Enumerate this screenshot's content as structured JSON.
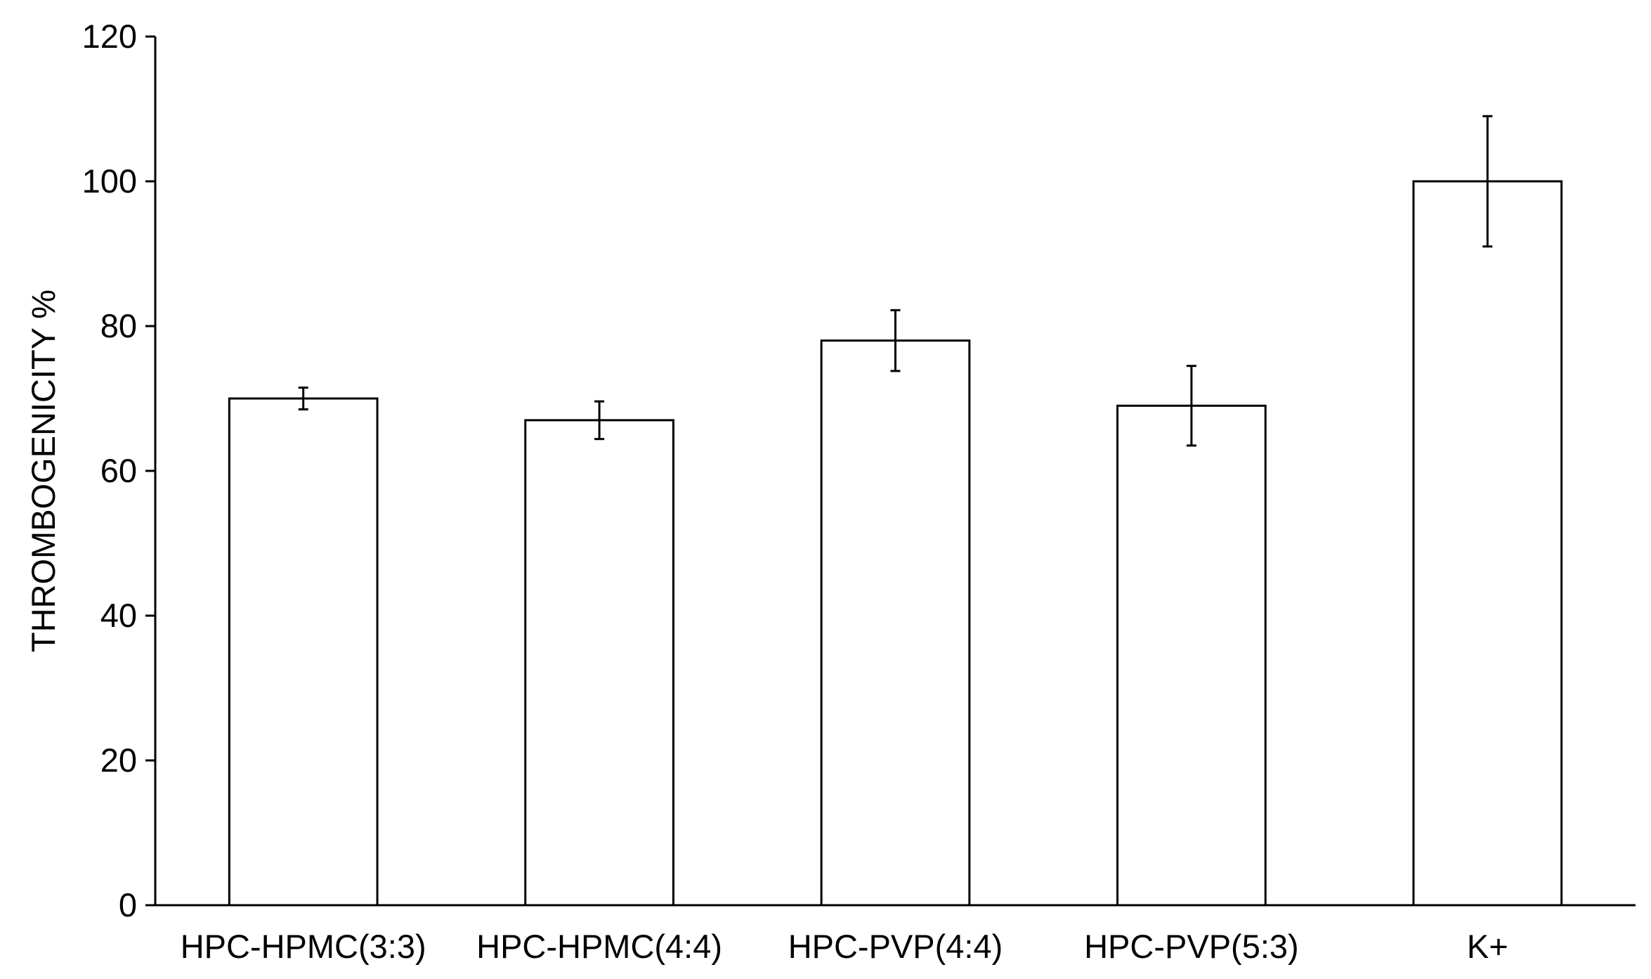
{
  "chart_data": {
    "type": "bar",
    "title": "",
    "xlabel": "",
    "ylabel": "THROMBOGENICITY %",
    "ylim": [
      0,
      120
    ],
    "yticks": [
      0,
      20,
      40,
      60,
      80,
      100,
      120
    ],
    "categories": [
      "HPC-HPMC(3:3)",
      "HPC-HPMC(4:4)",
      "HPC-PVP(4:4)",
      "HPC-PVP(5:3)",
      "K+"
    ],
    "values": [
      70,
      67,
      78,
      69,
      100
    ],
    "errors": [
      1.5,
      2.6,
      4.2,
      5.5,
      9.0
    ],
    "grid": false,
    "legend": "none",
    "bar_fill": "#ffffff",
    "bar_stroke": "#000000"
  }
}
